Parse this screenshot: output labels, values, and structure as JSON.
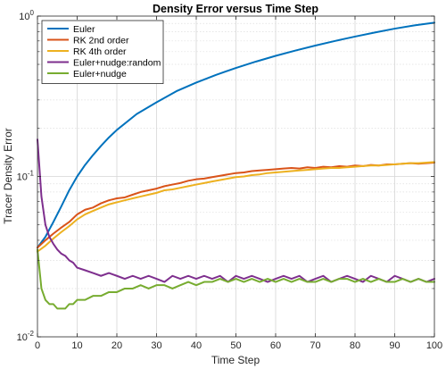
{
  "chart_data": {
    "type": "line",
    "title": "Density Error versus Time Step",
    "xlabel": "Time Step",
    "ylabel": "Tracer Density Error",
    "xlim": [
      0,
      100
    ],
    "ylim": [
      0.01,
      1
    ],
    "yscale": "log",
    "grid": true,
    "minor_grid": true,
    "legend_position": "top-left",
    "x_ticks": [
      0,
      10,
      20,
      30,
      40,
      50,
      60,
      70,
      80,
      90,
      100
    ],
    "x_tick_labels": [
      "0",
      "10",
      "20",
      "30",
      "40",
      "50",
      "60",
      "70",
      "80",
      "90",
      "100"
    ],
    "y_ticks": [
      0.01,
      0.1,
      1
    ],
    "y_tick_labels": [
      {
        "base": "10",
        "exp": "-2"
      },
      {
        "base": "10",
        "exp": "-1"
      },
      {
        "base": "10",
        "exp": "0"
      }
    ],
    "series": [
      {
        "name": "Euler",
        "color": "#0072BD",
        "x": [
          0,
          2,
          4,
          6,
          8,
          10,
          12,
          14,
          16,
          18,
          20,
          25,
          30,
          35,
          40,
          45,
          50,
          55,
          60,
          65,
          70,
          75,
          80,
          85,
          90,
          95,
          100
        ],
        "y": [
          0.036,
          0.042,
          0.052,
          0.065,
          0.082,
          0.1,
          0.118,
          0.136,
          0.155,
          0.175,
          0.195,
          0.245,
          0.29,
          0.34,
          0.385,
          0.43,
          0.475,
          0.52,
          0.565,
          0.61,
          0.655,
          0.7,
          0.745,
          0.79,
          0.835,
          0.875,
          0.91
        ]
      },
      {
        "name": "RK 2nd order",
        "color": "#D95319",
        "x": [
          0,
          2,
          4,
          6,
          8,
          10,
          12,
          14,
          16,
          18,
          20,
          22,
          24,
          26,
          28,
          30,
          32,
          34,
          36,
          38,
          40,
          42,
          44,
          46,
          48,
          50,
          52,
          54,
          56,
          58,
          60,
          62,
          64,
          66,
          68,
          70,
          72,
          74,
          76,
          78,
          80,
          82,
          84,
          86,
          88,
          90,
          92,
          94,
          96,
          98,
          100
        ],
        "y": [
          0.036,
          0.04,
          0.044,
          0.048,
          0.052,
          0.058,
          0.062,
          0.064,
          0.068,
          0.071,
          0.073,
          0.074,
          0.077,
          0.08,
          0.082,
          0.084,
          0.087,
          0.089,
          0.091,
          0.094,
          0.096,
          0.097,
          0.099,
          0.101,
          0.103,
          0.105,
          0.106,
          0.108,
          0.109,
          0.11,
          0.111,
          0.112,
          0.113,
          0.112,
          0.114,
          0.113,
          0.115,
          0.114,
          0.116,
          0.115,
          0.117,
          0.116,
          0.118,
          0.117,
          0.119,
          0.119,
          0.12,
          0.121,
          0.12,
          0.121,
          0.122
        ]
      },
      {
        "name": "RK 4th order",
        "color": "#EDB120",
        "x": [
          0,
          2,
          4,
          6,
          8,
          10,
          12,
          14,
          16,
          18,
          20,
          22,
          24,
          26,
          28,
          30,
          32,
          34,
          36,
          38,
          40,
          42,
          44,
          46,
          48,
          50,
          52,
          54,
          56,
          58,
          60,
          62,
          64,
          66,
          68,
          70,
          72,
          74,
          76,
          78,
          80,
          82,
          84,
          86,
          88,
          90,
          92,
          94,
          96,
          98,
          100
        ],
        "y": [
          0.034,
          0.037,
          0.041,
          0.045,
          0.049,
          0.054,
          0.058,
          0.061,
          0.064,
          0.067,
          0.069,
          0.071,
          0.073,
          0.075,
          0.077,
          0.079,
          0.082,
          0.083,
          0.085,
          0.087,
          0.089,
          0.091,
          0.093,
          0.095,
          0.097,
          0.099,
          0.1,
          0.102,
          0.103,
          0.105,
          0.106,
          0.107,
          0.108,
          0.109,
          0.11,
          0.111,
          0.112,
          0.113,
          0.113,
          0.114,
          0.115,
          0.116,
          0.117,
          0.117,
          0.118,
          0.119,
          0.12,
          0.121,
          0.121,
          0.122,
          0.123
        ]
      },
      {
        "name": "Euler+nudge:random",
        "color": "#7E2F8E",
        "x": [
          0,
          1,
          2,
          3,
          4,
          5,
          6,
          7,
          8,
          9,
          10,
          12,
          14,
          16,
          18,
          20,
          22,
          24,
          26,
          28,
          30,
          32,
          34,
          36,
          38,
          40,
          42,
          44,
          46,
          48,
          50,
          52,
          54,
          56,
          58,
          60,
          62,
          64,
          66,
          68,
          70,
          72,
          74,
          76,
          78,
          80,
          82,
          84,
          86,
          88,
          90,
          92,
          94,
          96,
          98,
          100
        ],
        "y": [
          0.17,
          0.075,
          0.05,
          0.042,
          0.038,
          0.035,
          0.033,
          0.032,
          0.03,
          0.029,
          0.027,
          0.026,
          0.025,
          0.024,
          0.025,
          0.024,
          0.023,
          0.024,
          0.023,
          0.024,
          0.023,
          0.022,
          0.024,
          0.023,
          0.024,
          0.023,
          0.024,
          0.023,
          0.024,
          0.022,
          0.024,
          0.023,
          0.024,
          0.023,
          0.022,
          0.023,
          0.024,
          0.023,
          0.024,
          0.022,
          0.023,
          0.024,
          0.022,
          0.023,
          0.024,
          0.023,
          0.022,
          0.024,
          0.023,
          0.022,
          0.024,
          0.023,
          0.022,
          0.023,
          0.022,
          0.023
        ]
      },
      {
        "name": "Euler+nudge",
        "color": "#77AC30",
        "x": [
          0,
          1,
          2,
          3,
          4,
          5,
          6,
          7,
          8,
          9,
          10,
          12,
          14,
          16,
          18,
          20,
          22,
          24,
          26,
          28,
          30,
          32,
          34,
          36,
          38,
          40,
          42,
          44,
          46,
          48,
          50,
          52,
          54,
          56,
          58,
          60,
          62,
          64,
          66,
          68,
          70,
          72,
          74,
          76,
          78,
          80,
          82,
          84,
          86,
          88,
          90,
          92,
          94,
          96,
          98,
          100
        ],
        "y": [
          0.035,
          0.02,
          0.017,
          0.016,
          0.016,
          0.015,
          0.015,
          0.015,
          0.016,
          0.016,
          0.017,
          0.017,
          0.018,
          0.018,
          0.019,
          0.019,
          0.02,
          0.02,
          0.021,
          0.02,
          0.021,
          0.021,
          0.02,
          0.021,
          0.022,
          0.021,
          0.022,
          0.022,
          0.023,
          0.022,
          0.023,
          0.022,
          0.023,
          0.022,
          0.023,
          0.022,
          0.023,
          0.022,
          0.023,
          0.022,
          0.022,
          0.023,
          0.022,
          0.023,
          0.023,
          0.022,
          0.023,
          0.022,
          0.023,
          0.022,
          0.022,
          0.023,
          0.022,
          0.023,
          0.022,
          0.022
        ]
      }
    ]
  }
}
